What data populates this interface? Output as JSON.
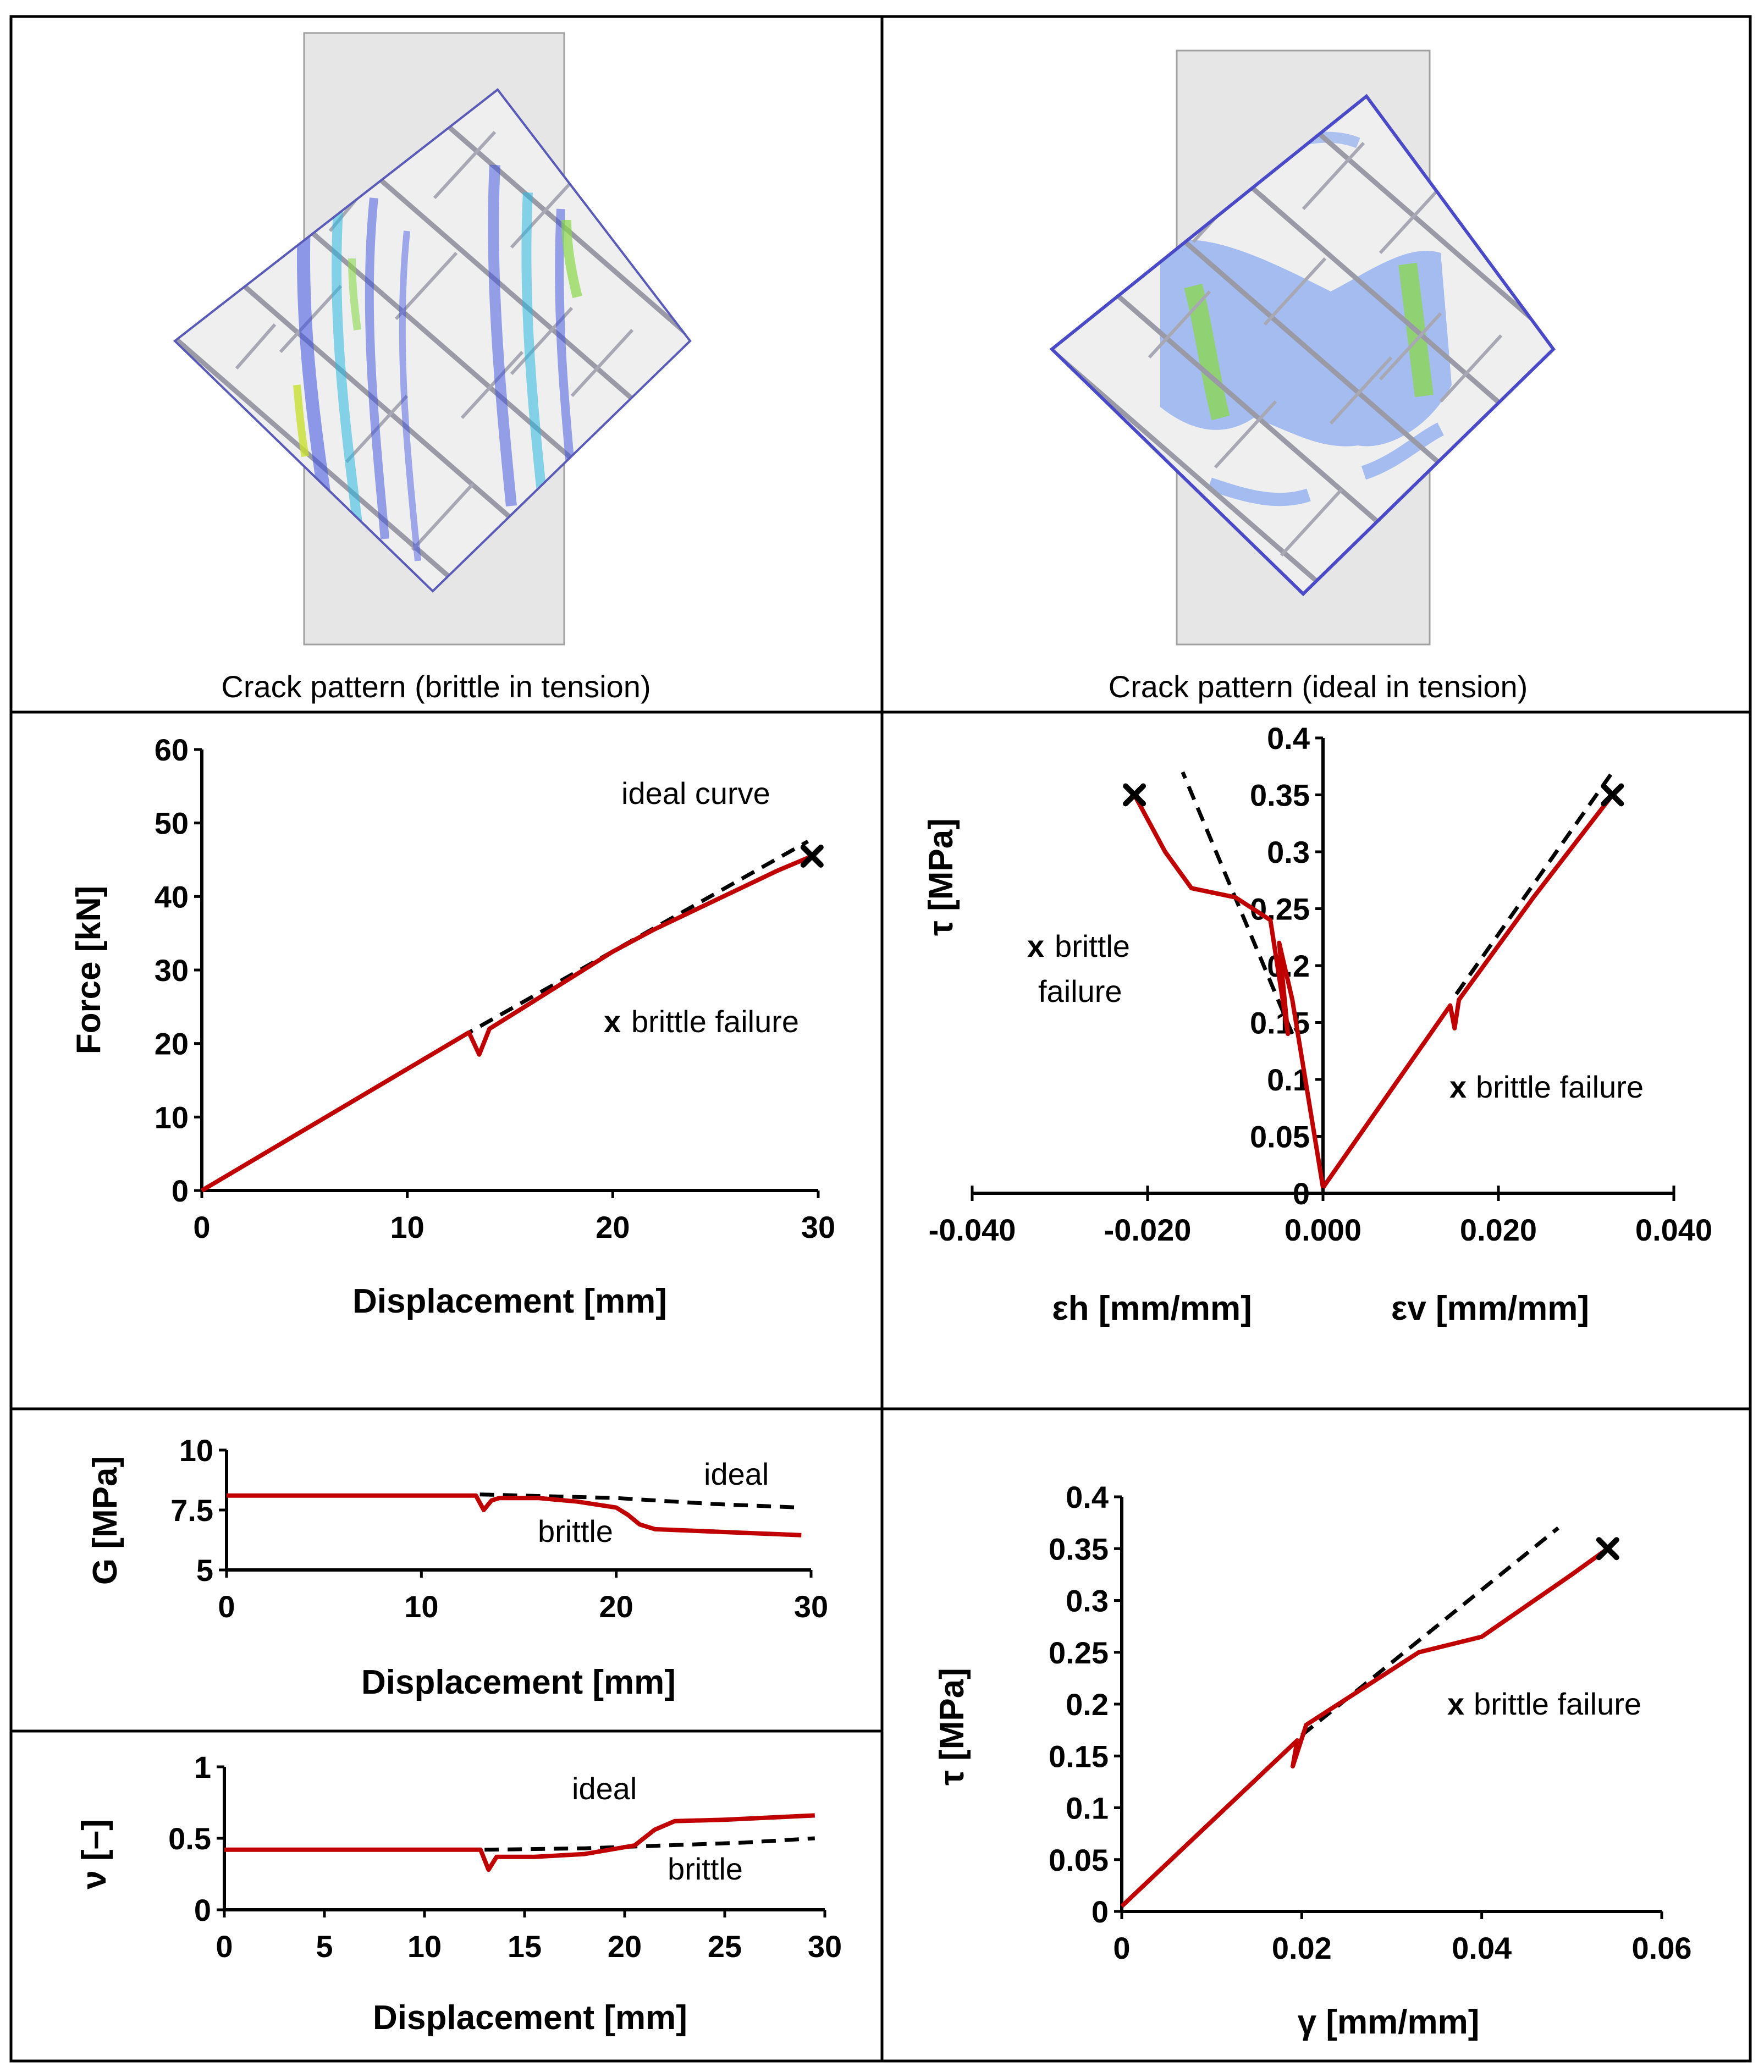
{
  "colors": {
    "brittle": "#c00000",
    "ideal": "#000000",
    "specimen": "#e6e6e6",
    "brick": "#efefef"
  },
  "panels": {
    "crack_left": {
      "caption": "Crack pattern (brittle in tension)"
    },
    "crack_right": {
      "caption": "Crack pattern (ideal in tension)"
    },
    "force": {
      "note_ideal": "ideal curve",
      "note_x": "x",
      "note_failure": "brittle failure"
    },
    "tau_strain": {
      "note_left_x": "x",
      "note_left_1": "brittle",
      "note_left_2": "failure",
      "note_right_x": "x",
      "note_right": "brittle failure"
    },
    "g": {
      "note_ideal": "ideal",
      "note_brittle": "brittle"
    },
    "nu": {
      "note_ideal": "ideal",
      "note_brittle": "brittle"
    },
    "tau_gamma": {
      "note_x": "x",
      "note_failure": "brittle failure"
    }
  },
  "chart_data": [
    {
      "id": "force",
      "type": "line",
      "xlabel": "Displacement [mm]",
      "ylabel": "Force [kN]",
      "xlim": [
        0,
        30
      ],
      "ylim": [
        0,
        60
      ],
      "xticks": [
        "0",
        "10",
        "20",
        "30"
      ],
      "yticks": [
        "0",
        "10",
        "20",
        "30",
        "40",
        "50",
        "60"
      ],
      "series": [
        {
          "name": "ideal curve",
          "style": "dashed",
          "x": [
            0,
            13,
            29.5
          ],
          "y": [
            0,
            21.5,
            47.5
          ]
        },
        {
          "name": "brittle",
          "style": "solid",
          "x": [
            0,
            13,
            13.5,
            14.0,
            16,
            20,
            22,
            25,
            28,
            29.7
          ],
          "y": [
            0,
            21.5,
            18.5,
            22,
            25.5,
            32.5,
            35.5,
            39.5,
            43.5,
            45.5
          ]
        }
      ],
      "failure": {
        "x": 29.7,
        "y": 45.5
      }
    },
    {
      "id": "tau_strain",
      "type": "line",
      "xlabel_left": "εh [mm/mm]",
      "xlabel_right": "εv [mm/mm]",
      "ylabel": "τ [MPa]",
      "xlim": [
        -0.04,
        0.04
      ],
      "ylim": [
        0,
        0.4
      ],
      "xticks": [
        "-0.040",
        "-0.020",
        "0.000",
        "0.020",
        "0.040"
      ],
      "yticks": [
        "0",
        "0.05",
        "0.1",
        "0.15",
        "0.2",
        "0.25",
        "0.3",
        "0.35",
        "0.4"
      ],
      "series": [
        {
          "name": "ideal εh",
          "style": "dashed",
          "x": [
            -0.0035,
            -0.016
          ],
          "y": [
            0.14,
            0.37
          ]
        },
        {
          "name": "ideal εv",
          "style": "dashed",
          "x": [
            0.0152,
            0.033
          ],
          "y": [
            0.175,
            0.37
          ]
        },
        {
          "name": "brittle εh",
          "style": "solid",
          "x": [
            0,
            -0.0035,
            -0.005,
            -0.004,
            -0.006,
            -0.008,
            -0.01,
            -0.015,
            -0.018,
            -0.0215
          ],
          "y": [
            0.005,
            0.17,
            0.22,
            0.14,
            0.24,
            0.25,
            0.26,
            0.268,
            0.3,
            0.35
          ]
        },
        {
          "name": "brittle εv",
          "style": "solid",
          "x": [
            0,
            0.0145,
            0.015,
            0.0155,
            0.024,
            0.033
          ],
          "y": [
            0.005,
            0.165,
            0.145,
            0.17,
            0.26,
            0.35
          ]
        }
      ],
      "failure": [
        {
          "x": -0.0215,
          "y": 0.35
        },
        {
          "x": 0.033,
          "y": 0.35
        }
      ]
    },
    {
      "id": "g",
      "type": "line",
      "xlabel": "Displacement [mm]",
      "ylabel": "G [MPa]",
      "xlim": [
        0,
        30
      ],
      "ylim": [
        5,
        10
      ],
      "xticks": [
        "0",
        "10",
        "20",
        "30"
      ],
      "yticks": [
        "5",
        "7.5",
        "10"
      ],
      "series": [
        {
          "name": "ideal",
          "style": "dashed",
          "x": [
            13,
            20,
            25,
            29.5
          ],
          "y": [
            8.15,
            8.0,
            7.75,
            7.6
          ]
        },
        {
          "name": "brittle",
          "style": "solid",
          "x": [
            0,
            12.8,
            13.2,
            13.6,
            14,
            16,
            18,
            20,
            20.6,
            21.2,
            22,
            25,
            29.5
          ],
          "y": [
            8.1,
            8.1,
            7.5,
            7.9,
            8.0,
            8.0,
            7.85,
            7.6,
            7.3,
            6.9,
            6.7,
            6.6,
            6.45
          ]
        }
      ]
    },
    {
      "id": "nu",
      "type": "line",
      "xlabel": "Displacement [mm]",
      "ylabel": "ν [–]",
      "xlim": [
        0,
        30
      ],
      "ylim": [
        0,
        1
      ],
      "xticks": [
        "0",
        "5",
        "10",
        "15",
        "20",
        "25",
        "30"
      ],
      "yticks": [
        "0",
        "0.5",
        "1"
      ],
      "series": [
        {
          "name": "ideal",
          "style": "dashed",
          "x": [
            13,
            18,
            22,
            26,
            29.5
          ],
          "y": [
            0.42,
            0.43,
            0.45,
            0.47,
            0.5
          ]
        },
        {
          "name": "brittle",
          "style": "solid",
          "x": [
            0,
            12.8,
            13.2,
            13.6,
            15.5,
            18,
            20.5,
            21.5,
            22.5,
            25,
            29.5
          ],
          "y": [
            0.42,
            0.42,
            0.28,
            0.37,
            0.37,
            0.39,
            0.45,
            0.56,
            0.62,
            0.63,
            0.66
          ]
        }
      ]
    },
    {
      "id": "tau_gamma",
      "type": "line",
      "xlabel": "γ [mm/mm]",
      "ylabel": "τ [MPa]",
      "xlim": [
        0,
        0.06
      ],
      "ylim": [
        0,
        0.4
      ],
      "xticks": [
        "0",
        "0.02",
        "0.04",
        "0.06"
      ],
      "yticks": [
        "0",
        "0.05",
        "0.1",
        "0.15",
        "0.2",
        "0.25",
        "0.3",
        "0.35",
        "0.4"
      ],
      "series": [
        {
          "name": "ideal",
          "style": "dashed",
          "x": [
            0.02,
            0.0485
          ],
          "y": [
            0.17,
            0.37
          ]
        },
        {
          "name": "brittle",
          "style": "solid",
          "x": [
            0,
            0.0195,
            0.019,
            0.0205,
            0.033,
            0.04,
            0.05,
            0.054
          ],
          "y": [
            0.005,
            0.165,
            0.14,
            0.18,
            0.25,
            0.265,
            0.325,
            0.35
          ]
        }
      ],
      "failure": {
        "x": 0.054,
        "y": 0.35
      }
    }
  ]
}
